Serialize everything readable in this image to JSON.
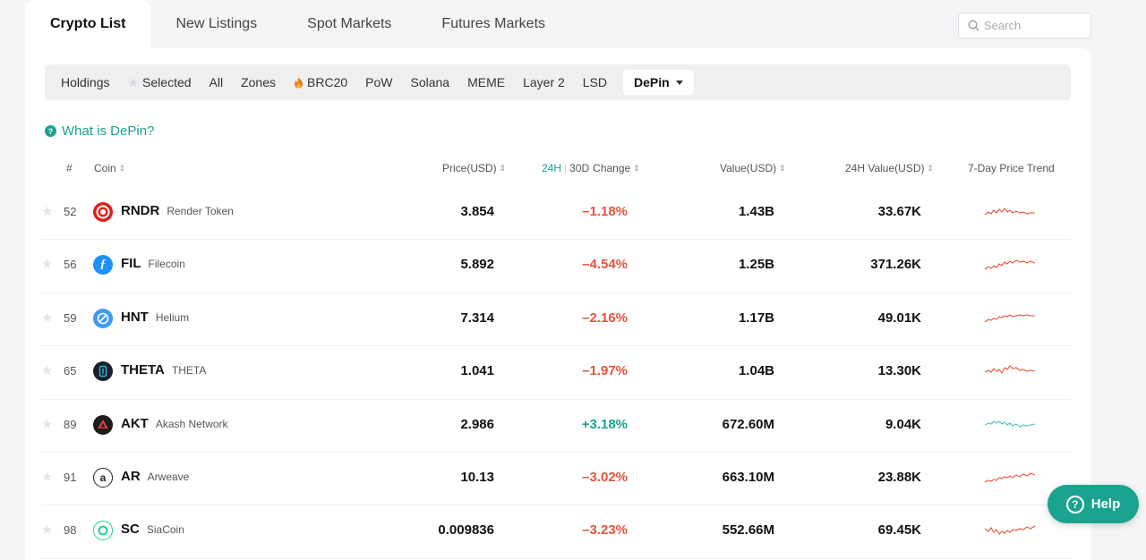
{
  "top_tabs": [
    "Crypto List",
    "New Listings",
    "Spot Markets",
    "Futures Markets"
  ],
  "search": {
    "placeholder": "Search"
  },
  "filters": [
    "Holdings",
    "Selected",
    "All",
    "Zones",
    "BRC20",
    "PoW",
    "Solana",
    "MEME",
    "Layer 2",
    "LSD"
  ],
  "active_filter": "DePin",
  "what_is": "What is DePin?",
  "headers": {
    "rank": "#",
    "coin": "Coin",
    "price": "Price(USD)",
    "change_24h": "24H",
    "change_30d": "30D",
    "change_label": "Change",
    "value": "Value(USD)",
    "value_24h": "24H Value(USD)",
    "trend": "7-Day Price Trend"
  },
  "rows": [
    {
      "rank": "52",
      "symbol": "RNDR",
      "name": "Render Token",
      "price": "3.854",
      "change": "–1.18%",
      "value": "1.43B",
      "value_24h": "33.67K",
      "icon": "rndr-icon"
    },
    {
      "rank": "56",
      "symbol": "FIL",
      "name": "Filecoin",
      "price": "5.892",
      "change": "–4.54%",
      "value": "1.25B",
      "value_24h": "371.26K",
      "icon": "fil-icon"
    },
    {
      "rank": "59",
      "symbol": "HNT",
      "name": "Helium",
      "price": "7.314",
      "change": "–2.16%",
      "value": "1.17B",
      "value_24h": "49.01K",
      "icon": "hnt-icon"
    },
    {
      "rank": "65",
      "symbol": "THETA",
      "name": "THETA",
      "price": "1.041",
      "change": "–1.97%",
      "value": "1.04B",
      "value_24h": "13.30K",
      "icon": "theta-icon"
    },
    {
      "rank": "89",
      "symbol": "AKT",
      "name": "Akash Network",
      "price": "2.986",
      "change": "+3.18%",
      "value": "672.60M",
      "value_24h": "9.04K",
      "icon": "akt-icon"
    },
    {
      "rank": "91",
      "symbol": "AR",
      "name": "Arweave",
      "price": "10.13",
      "change": "–3.02%",
      "value": "663.10M",
      "value_24h": "23.88K",
      "icon": "ar-icon"
    },
    {
      "rank": "98",
      "symbol": "SC",
      "name": "SiaCoin",
      "price": "0.009836",
      "change": "–3.23%",
      "value": "552.66M",
      "value_24h": "69.45K",
      "icon": "sc-icon"
    }
  ],
  "help_label": "Help",
  "colors": {
    "accent": "#1aa38f",
    "negative": "#e5533f",
    "positive": "#1aa38f"
  }
}
